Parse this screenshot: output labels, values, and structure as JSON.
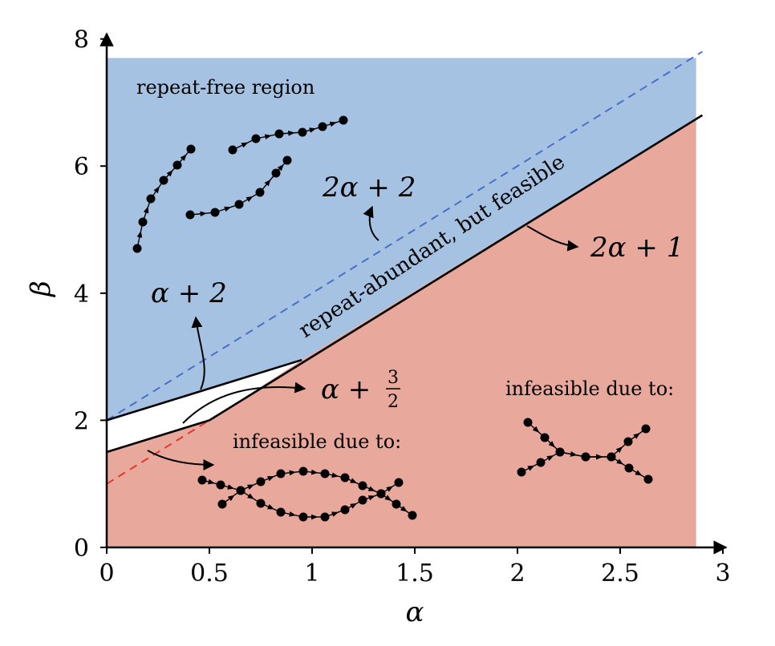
{
  "chart_data": {
    "type": "area",
    "title": "",
    "xlabel": "α",
    "ylabel": "β",
    "xlim": [
      0,
      3
    ],
    "ylim": [
      0,
      8
    ],
    "xticks": [
      "0",
      "0.5",
      "1",
      "1.5",
      "2",
      "2.5",
      "3"
    ],
    "yticks": [
      "0",
      "2",
      "4",
      "6",
      "8"
    ],
    "grid": false,
    "series": [
      {
        "name": "repeat-free region",
        "color": "#a6c2e2"
      },
      {
        "color": "#ffffff"
      },
      {
        "color": "#e8a89b"
      }
    ],
    "lines": [
      {
        "expr": "2α + 2",
        "style": "dashed",
        "color": "#4a6fc6",
        "x": [
          0,
          2.9
        ],
        "y": [
          2,
          7.8
        ]
      },
      {
        "expr": "2α + 1",
        "style": "dashed",
        "color": "#e03a2a",
        "x": [
          0,
          0.5
        ],
        "y": [
          1,
          2
        ]
      },
      {
        "expr": "α + 2",
        "style": "solid",
        "color": "#000000",
        "x": [
          0,
          0.95
        ],
        "y": [
          2,
          2.95
        ]
      },
      {
        "expr": "α + 3/2",
        "style": "solid",
        "color": "#000000",
        "x": [
          0,
          0.5
        ],
        "y": [
          1.5,
          2
        ]
      },
      {
        "expr": "2α + 1",
        "style": "solid",
        "color": "#000000",
        "x": [
          0.5,
          2.9
        ],
        "y": [
          2,
          6.8
        ]
      }
    ],
    "annotations": {
      "repeat_free": "repeat-free region",
      "repeat_abundant": "repeat-abundant, but feasible",
      "infeasible_left": "infeasible  due to:",
      "infeasible_right": "infeasible  due to:",
      "line_2a2": "2α + 2",
      "line_a2": "α + 2",
      "line_2a1": "2α + 1",
      "line_a32_prefix": "α + ",
      "line_a32_num": "3",
      "line_a32_den": "2"
    }
  }
}
